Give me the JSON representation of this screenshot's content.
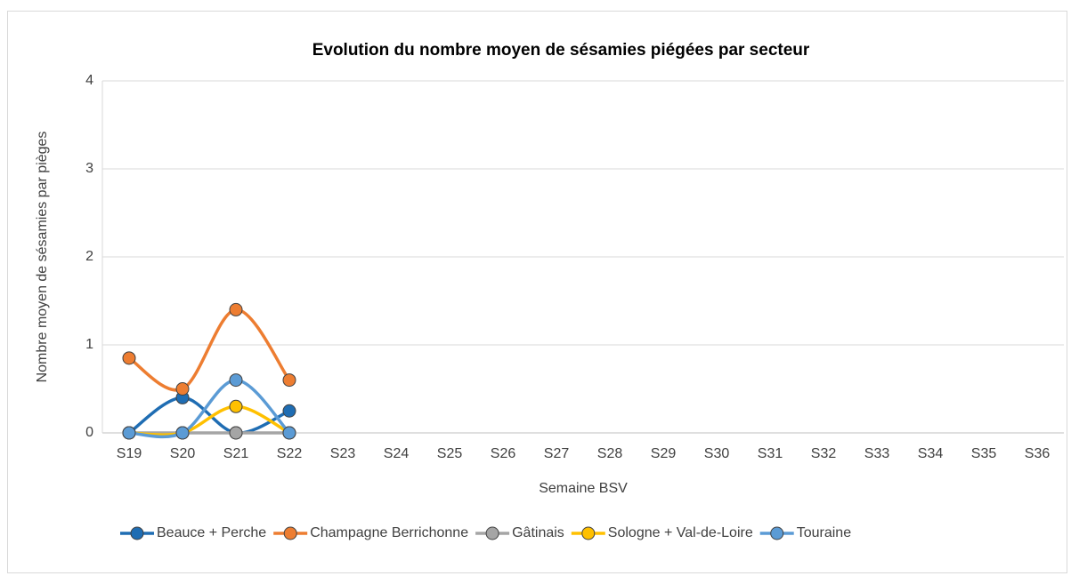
{
  "chart_data": {
    "type": "line",
    "title": "Evolution du nombre moyen de sésamies piégées par secteur",
    "x_label": "Semaine BSV",
    "y_label": "Nombre moyen de sésamies par pièges",
    "categories": [
      "S19",
      "S20",
      "S21",
      "S22",
      "S23",
      "S24",
      "S25",
      "S26",
      "S27",
      "S28",
      "S29",
      "S30",
      "S31",
      "S32",
      "S33",
      "S34",
      "S35",
      "S36"
    ],
    "series": [
      {
        "name": "Beauce + Perche",
        "color": "#1f6db3",
        "values": [
          0,
          0.4,
          0,
          0.25,
          null,
          null,
          null,
          null,
          null,
          null,
          null,
          null,
          null,
          null,
          null,
          null,
          null,
          null
        ]
      },
      {
        "name": "Champagne Berrichonne",
        "color": "#ed7d31",
        "values": [
          0.85,
          0.5,
          1.4,
          0.6,
          null,
          null,
          null,
          null,
          null,
          null,
          null,
          null,
          null,
          null,
          null,
          null,
          null,
          null
        ]
      },
      {
        "name": "Gâtinais",
        "color": "#a5a5a5",
        "values": [
          0,
          0,
          0,
          0,
          null,
          null,
          null,
          null,
          null,
          null,
          null,
          null,
          null,
          null,
          null,
          null,
          null,
          null
        ]
      },
      {
        "name": "Sologne + Val-de-Loire",
        "color": "#ffc000",
        "values": [
          0,
          0,
          0.3,
          0,
          null,
          null,
          null,
          null,
          null,
          null,
          null,
          null,
          null,
          null,
          null,
          null,
          null,
          null
        ]
      },
      {
        "name": "Touraine",
        "color": "#5b9bd5",
        "values": [
          0,
          0,
          0.6,
          0,
          null,
          null,
          null,
          null,
          null,
          null,
          null,
          null,
          null,
          null,
          null,
          null,
          null,
          null
        ]
      }
    ],
    "ylim": [
      0,
      4
    ],
    "yticks": [
      0,
      1,
      2,
      3,
      4
    ],
    "grid": true,
    "smooth": true,
    "markers": true,
    "legend": "bottom"
  }
}
